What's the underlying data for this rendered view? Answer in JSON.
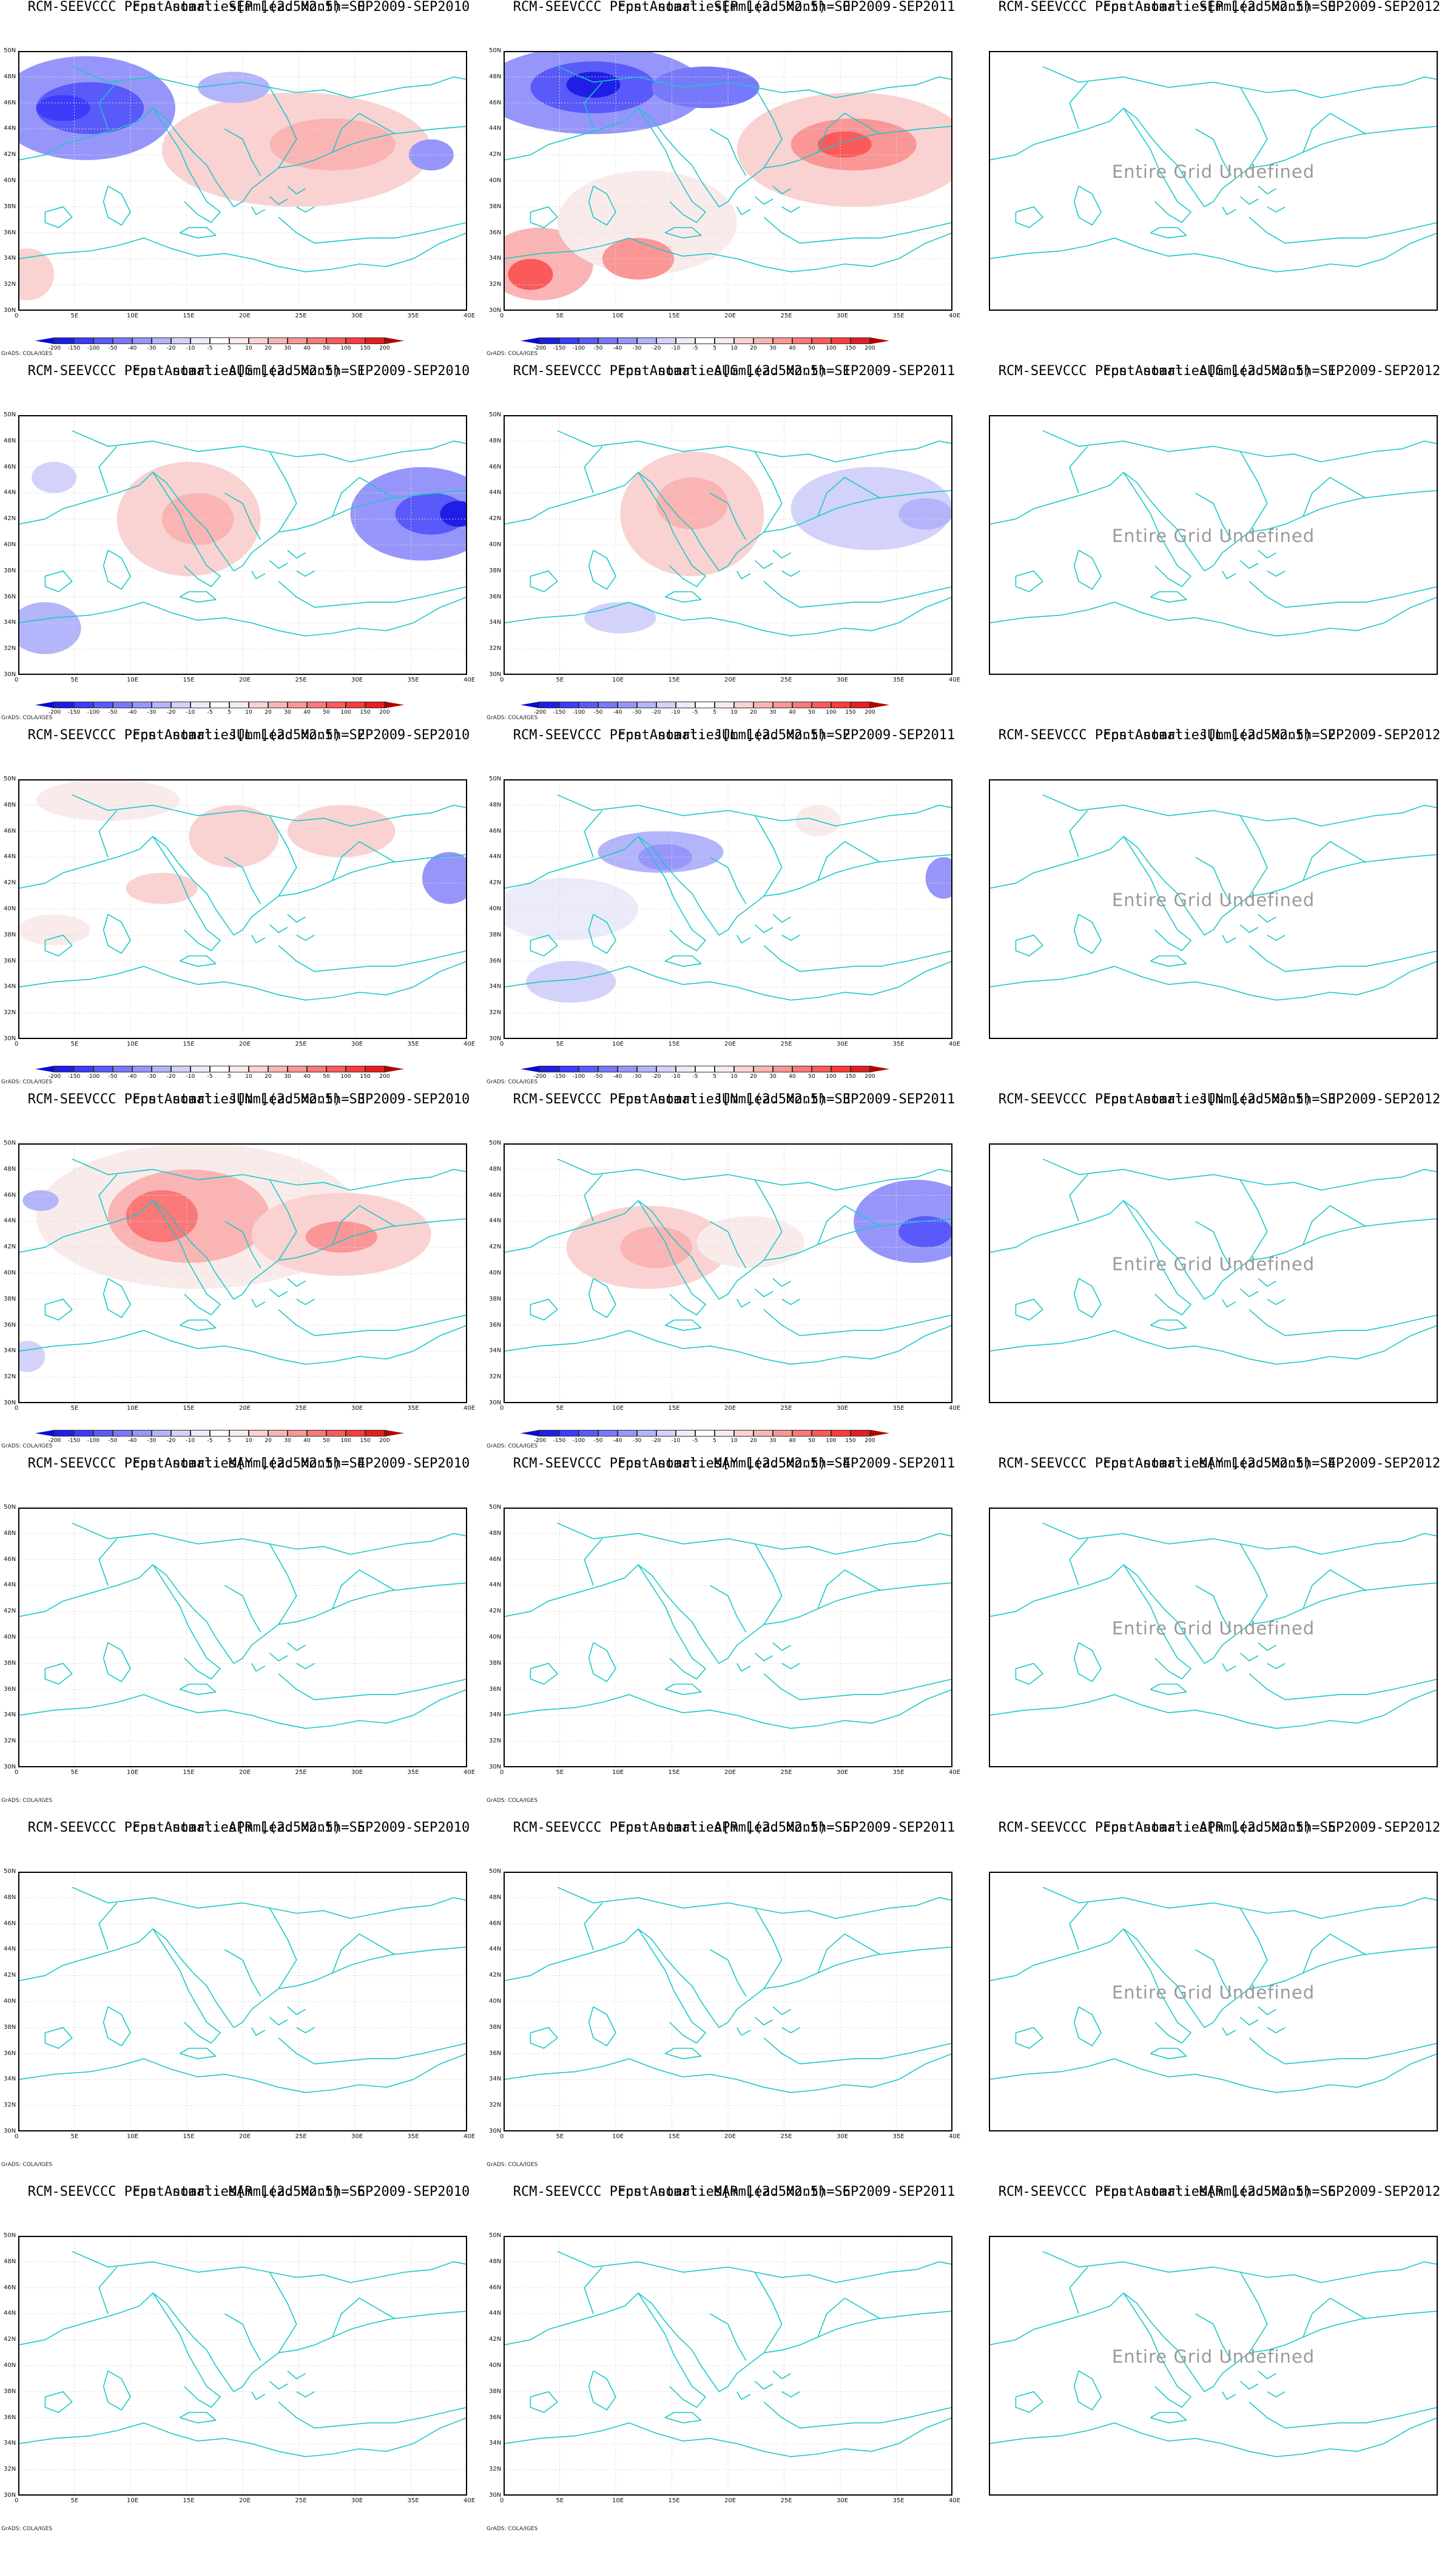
{
  "colorbar": {
    "labels": [
      "-200",
      "-150",
      "-100",
      "-50",
      "-40",
      "-30",
      "-20",
      "-10",
      "-5",
      "5",
      "10",
      "20",
      "30",
      "40",
      "50",
      "100",
      "150",
      "200"
    ],
    "colors": [
      "#0a0ad2",
      "#1e1ee6",
      "#3c3cfa",
      "#5a5afa",
      "#7878fa",
      "#9696fa",
      "#b4b4fa",
      "#d2d2fa",
      "#ebebfa",
      "#ffffff",
      "#faebeb",
      "#fad2d2",
      "#fab4b4",
      "#fa9696",
      "#fa7878",
      "#fa5a5a",
      "#fa3c3c",
      "#e61e1e",
      "#b40000"
    ]
  },
  "lon_labels": [
    "0",
    "5E",
    "10E",
    "15E",
    "20E",
    "25E",
    "30E",
    "35E",
    "40E"
  ],
  "lat_labels": [
    "50N",
    "48N",
    "46N",
    "44N",
    "42N",
    "40N",
    "38N",
    "36N",
    "34N",
    "32N",
    "30N"
  ],
  "colors": {
    "coast": "#19c8c8",
    "grid": "#d9d9d9",
    "frame": "#000000",
    "undefined_text": "#9a9a9a"
  },
  "cells": [
    {
      "title1": "RCM-SEEVCCC Pcpn Anomalies[mm](2.5x2.5) SEP2009-SEP2010",
      "title2": "Fcst start: SEP  Lead Month= 0",
      "grads": "GrADS: COLA/IGES",
      "has_data": true,
      "colorbar": true,
      "undefined": ""
    },
    {
      "title1": "RCM-SEEVCCC Pcpn Anomalies[mm](2.5x2.5) SEP2009-SEP2011",
      "title2": "Fcst start: SEP  Lead Month= 0",
      "grads": "GrADS: COLA/IGES",
      "has_data": true,
      "colorbar": true,
      "undefined": ""
    },
    {
      "title1": "RCM-SEEVCCC Pcpn Anomalies[mm](2.5x2.5) SEP2009-SEP2012",
      "title2": "Fcst start: SEP  Lead Month= 0",
      "grads": "",
      "has_data": false,
      "colorbar": false,
      "undefined": "Entire Grid Undefined"
    },
    {
      "title1": "RCM-SEEVCCC Pcpn Anomalies[mm](2.5x2.5) SEP2009-SEP2010",
      "title2": "Fcst start: AUG  Lead Month= 1",
      "grads": "GrADS: COLA/IGES",
      "has_data": true,
      "colorbar": true,
      "undefined": ""
    },
    {
      "title1": "RCM-SEEVCCC Pcpn Anomalies[mm](2.5x2.5) SEP2009-SEP2011",
      "title2": "Fcst start: AUG  Lead Month= 1",
      "grads": "GrADS: COLA/IGES",
      "has_data": true,
      "colorbar": true,
      "undefined": ""
    },
    {
      "title1": "RCM-SEEVCCC Pcpn Anomalies[mm](2.5x2.5) SEP2009-SEP2012",
      "title2": "Fcst start: AUG  Lead Month= 1",
      "grads": "",
      "has_data": false,
      "colorbar": false,
      "undefined": "Entire Grid Undefined"
    },
    {
      "title1": "RCM-SEEVCCC Pcpn Anomalies[mm](2.5x2.5) SEP2009-SEP2010",
      "title2": "Fcst start: JUL  Lead Month= 2",
      "grads": "GrADS: COLA/IGES",
      "has_data": true,
      "colorbar": true,
      "undefined": ""
    },
    {
      "title1": "RCM-SEEVCCC Pcpn Anomalies[mm](2.5x2.5) SEP2009-SEP2011",
      "title2": "Fcst start: JUL  Lead Month= 2",
      "grads": "GrADS: COLA/IGES",
      "has_data": true,
      "colorbar": true,
      "undefined": ""
    },
    {
      "title1": "RCM-SEEVCCC Pcpn Anomalies[mm](2.5x2.5) SEP2009-SEP2012",
      "title2": "Fcst start: JUL  Lead Month= 2",
      "grads": "",
      "has_data": false,
      "colorbar": false,
      "undefined": "Entire Grid Undefined"
    },
    {
      "title1": "RCM-SEEVCCC Pcpn Anomalies[mm](2.5x2.5) SEP2009-SEP2010",
      "title2": "Fcst start: JUN  Lead Month= 3",
      "grads": "GrADS: COLA/IGES",
      "has_data": true,
      "colorbar": true,
      "undefined": ""
    },
    {
      "title1": "RCM-SEEVCCC Pcpn Anomalies[mm](2.5x2.5) SEP2009-SEP2011",
      "title2": "Fcst start: JUN  Lead Month= 3",
      "grads": "GrADS: COLA/IGES",
      "has_data": true,
      "colorbar": true,
      "undefined": ""
    },
    {
      "title1": "RCM-SEEVCCC Pcpn Anomalies[mm](2.5x2.5) SEP2009-SEP2012",
      "title2": "Fcst start: JUN  Lead Month= 3",
      "grads": "",
      "has_data": false,
      "colorbar": false,
      "undefined": "Entire Grid Undefined"
    },
    {
      "title1": "RCM-SEEVCCC Pcpn Anomalies[mm](2.5x2.5) SEP2009-SEP2010",
      "title2": "Fcst start: MAY  Lead Month= 4",
      "grads": "GrADS: COLA/IGES",
      "has_data": true,
      "colorbar": false,
      "undefined": ""
    },
    {
      "title1": "RCM-SEEVCCC Pcpn Anomalies[mm](2.5x2.5) SEP2009-SEP2011",
      "title2": "Fcst start: MAY  Lead Month= 4",
      "grads": "GrADS: COLA/IGES",
      "has_data": true,
      "colorbar": false,
      "undefined": ""
    },
    {
      "title1": "RCM-SEEVCCC Pcpn Anomalies[mm](2.5x2.5) SEP2009-SEP2012",
      "title2": "Fcst start: MAY  Lead Month= 4",
      "grads": "",
      "has_data": false,
      "colorbar": false,
      "undefined": "Entire Grid Undefined"
    },
    {
      "title1": "RCM-SEEVCCC Pcpn Anomalies[mm](2.5x2.5) SEP2009-SEP2010",
      "title2": "Fcst start: APR  Lead Month= 5",
      "grads": "GrADS: COLA/IGES",
      "has_data": true,
      "colorbar": false,
      "undefined": ""
    },
    {
      "title1": "RCM-SEEVCCC Pcpn Anomalies[mm](2.5x2.5) SEP2009-SEP2011",
      "title2": "Fcst start: APR  Lead Month= 5",
      "grads": "GrADS: COLA/IGES",
      "has_data": true,
      "colorbar": false,
      "undefined": ""
    },
    {
      "title1": "RCM-SEEVCCC Pcpn Anomalies[mm](2.5x2.5) SEP2009-SEP2012",
      "title2": "Fcst start: APR  Lead Month= 5",
      "grads": "",
      "has_data": false,
      "colorbar": false,
      "undefined": "Entire Grid Undefined"
    },
    {
      "title1": "RCM-SEEVCCC Pcpn Anomalies[mm](2.5x2.5) SEP2009-SEP2010",
      "title2": "Fcst start: MAR  Lead Month= 6",
      "grads": "GrADS: COLA/IGES",
      "has_data": true,
      "colorbar": false,
      "undefined": ""
    },
    {
      "title1": "RCM-SEEVCCC Pcpn Anomalies[mm](2.5x2.5) SEP2009-SEP2011",
      "title2": "Fcst start: MAR  Lead Month= 6",
      "grads": "GrADS: COLA/IGES",
      "has_data": true,
      "colorbar": false,
      "undefined": ""
    },
    {
      "title1": "RCM-SEEVCCC Pcpn Anomalies[mm](2.5x2.5) SEP2009-SEP2012",
      "title2": "Fcst start: MAR  Lead Month= 6",
      "grads": "",
      "has_data": false,
      "colorbar": false,
      "undefined": "Entire Grid Undefined"
    }
  ]
}
